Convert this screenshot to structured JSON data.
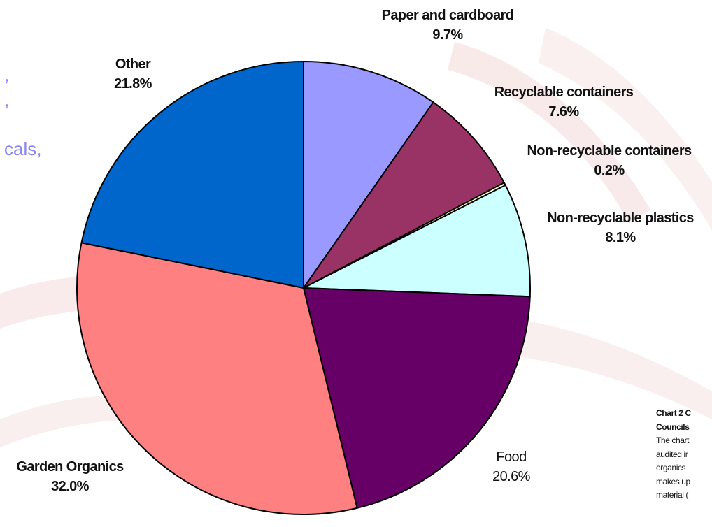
{
  "side_text": {
    "lines": [
      ",",
      ",",
      "",
      "cals,"
    ]
  },
  "chart_data": {
    "type": "pie",
    "title": "",
    "slices": [
      {
        "label": "Paper and cardboard",
        "pct_label": "9.7%",
        "value": 9.7,
        "color": "#9999ff"
      },
      {
        "label": "Recyclable containers",
        "pct_label": "7.6%",
        "value": 7.6,
        "color": "#993366"
      },
      {
        "label": "Non-recyclable containers",
        "pct_label": "0.2%",
        "value": 0.2,
        "color": "#ffffcc"
      },
      {
        "label": "Non-recyclable plastics",
        "pct_label": "8.1%",
        "value": 8.1,
        "color": "#ccffff"
      },
      {
        "label": "Food",
        "pct_label": "20.6%",
        "value": 20.6,
        "color": "#660066"
      },
      {
        "label": "Garden Organics",
        "pct_label": "32.0%",
        "value": 32.0,
        "color": "#ff8080"
      },
      {
        "label": "Other",
        "pct_label": "21.8%",
        "value": 21.8,
        "color": "#0066cc"
      }
    ],
    "start_angle_deg": 0,
    "direction": "clockwise",
    "legend": "none"
  },
  "caption": {
    "title_lines": [
      "Chart 2 C",
      "Councils"
    ],
    "body_lines": [
      "The chart",
      "audited ir",
      "organics",
      "makes up",
      "material ("
    ]
  }
}
